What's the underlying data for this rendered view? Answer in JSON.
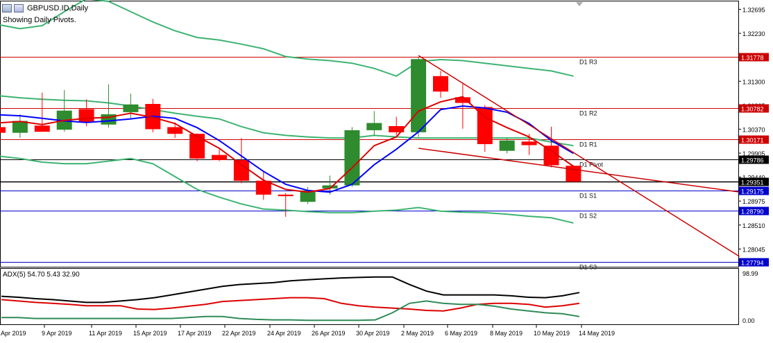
{
  "header": {
    "symbol": "GBPUSD.ID,Daily",
    "subtitle": "Showing Daily Pivots.",
    "indicator_label": "ADX(5) 54.70 5.43 32.90"
  },
  "icons": [
    "chart-window-icon",
    "indicator-icon"
  ],
  "colors": {
    "bull": "#2e8b2e",
    "bear": "#ff0000",
    "pivot_red": "#cc0000",
    "pivot_blue": "#0000cc",
    "ma_blue": "#0000ff",
    "ma_red": "#dd0000",
    "band": "#3cb371",
    "adx_main": "#000000",
    "adx_minus": "#dd0000",
    "adx_plus": "#2e8b57"
  },
  "price_axis": {
    "ticks": [
      "1.32695",
      "1.32230",
      "1.31300",
      "1.30835",
      "1.30370",
      "1.29905",
      "1.29440",
      "1.28975",
      "1.28510",
      "1.28045"
    ]
  },
  "pivot_lines": [
    {
      "name": "D1 R3",
      "price": "1.31778",
      "type": "resistance"
    },
    {
      "name": "D1 R2",
      "price": "1.30782",
      "type": "resistance"
    },
    {
      "name": "D1 R1",
      "price": "1.30171",
      "type": "resistance"
    },
    {
      "name": "D1 Pivot",
      "price": "1.29786",
      "type": "pivot"
    },
    {
      "name": "D1 S1",
      "price": "1.29175",
      "type": "support"
    },
    {
      "name": "D1 S2",
      "price": "1.28790",
      "type": "support"
    },
    {
      "name": "D1 S3",
      "price": "1.27794",
      "type": "support"
    }
  ],
  "current_price": "1.29351",
  "chart_data": {
    "type": "candlestick",
    "title": "GBPUSD.ID,Daily",
    "ylim": [
      1.277,
      1.3285
    ],
    "candles": [
      {
        "o": 1.3041,
        "h": 1.3065,
        "l": 1.3025,
        "c": 1.303
      },
      {
        "o": 1.303,
        "h": 1.3066,
        "l": 1.302,
        "c": 1.3053
      },
      {
        "o": 1.3044,
        "h": 1.3108,
        "l": 1.3034,
        "c": 1.3032
      },
      {
        "o": 1.3036,
        "h": 1.3113,
        "l": 1.3032,
        "c": 1.3073
      },
      {
        "o": 1.3076,
        "h": 1.3095,
        "l": 1.3043,
        "c": 1.305
      },
      {
        "o": 1.3046,
        "h": 1.3124,
        "l": 1.304,
        "c": 1.3066
      },
      {
        "o": 1.307,
        "h": 1.3106,
        "l": 1.3058,
        "c": 1.3085
      },
      {
        "o": 1.3086,
        "h": 1.3096,
        "l": 1.3031,
        "c": 1.3037
      },
      {
        "o": 1.3041,
        "h": 1.305,
        "l": 1.302,
        "c": 1.3028
      },
      {
        "o": 1.3028,
        "h": 1.3029,
        "l": 1.2975,
        "c": 1.298
      },
      {
        "o": 1.2987,
        "h": 1.2998,
        "l": 1.2975,
        "c": 1.2977
      },
      {
        "o": 1.2977,
        "h": 1.302,
        "l": 1.2932,
        "c": 1.2937
      },
      {
        "o": 1.2937,
        "h": 1.2955,
        "l": 1.29,
        "c": 1.291
      },
      {
        "o": 1.291,
        "h": 1.2913,
        "l": 1.2867,
        "c": 1.2907
      },
      {
        "o": 1.2896,
        "h": 1.2925,
        "l": 1.2892,
        "c": 1.2918
      },
      {
        "o": 1.2922,
        "h": 1.2947,
        "l": 1.291,
        "c": 1.2928
      },
      {
        "o": 1.2928,
        "h": 1.3041,
        "l": 1.2925,
        "c": 1.3035
      },
      {
        "o": 1.3035,
        "h": 1.3072,
        "l": 1.3024,
        "c": 1.3049
      },
      {
        "o": 1.3043,
        "h": 1.3061,
        "l": 1.3025,
        "c": 1.3031
      },
      {
        "o": 1.3031,
        "h": 1.3176,
        "l": 1.3022,
        "c": 1.3173
      },
      {
        "o": 1.314,
        "h": 1.315,
        "l": 1.3098,
        "c": 1.311
      },
      {
        "o": 1.3099,
        "h": 1.3125,
        "l": 1.3038,
        "c": 1.3088
      },
      {
        "o": 1.308,
        "h": 1.3084,
        "l": 1.2993,
        "c": 1.3008
      },
      {
        "o": 1.2995,
        "h": 1.302,
        "l": 1.299,
        "c": 1.3015
      },
      {
        "o": 1.3013,
        "h": 1.3028,
        "l": 1.2987,
        "c": 1.3006
      },
      {
        "o": 1.3005,
        "h": 1.3042,
        "l": 1.2963,
        "c": 1.2967
      },
      {
        "o": 1.2966,
        "h": 1.2967,
        "l": 1.2935,
        "c": 1.2935
      }
    ],
    "x_labels": [
      "5 Apr 2019",
      "9 Apr 2019",
      "11 Apr 2019",
      "15 Apr 2019",
      "17 Apr 2019",
      "22 Apr 2019",
      "24 Apr 2019",
      "26 Apr 2019",
      "30 Apr 2019",
      "2 May 2019",
      "6 May 2019",
      "8 May 2019",
      "10 May 2019",
      "14 May 2019"
    ],
    "ma_blue": [
      1.3065,
      1.3063,
      1.3058,
      1.3053,
      1.305,
      1.3053,
      1.3057,
      1.3062,
      1.3058,
      1.304,
      1.3015,
      1.2985,
      1.2955,
      1.293,
      1.2918,
      1.2915,
      1.293,
      1.2968,
      1.2998,
      1.3032,
      1.3075,
      1.3082,
      1.3078,
      1.307,
      1.3048,
      1.3015,
      1.299
    ],
    "ma_red": [
      1.3049,
      1.3052,
      1.3046,
      1.3054,
      1.3058,
      1.306,
      1.3068,
      1.306,
      1.3048,
      1.3023,
      1.3,
      1.2968,
      1.2938,
      1.292,
      1.2915,
      1.2922,
      1.2962,
      1.3005,
      1.3022,
      1.3072,
      1.309,
      1.31,
      1.306,
      1.304,
      1.3022,
      1.2995,
      1.2965
    ],
    "band_upper": [
      1.324,
      1.3232,
      1.3238,
      1.3265,
      1.329,
      1.3285,
      1.3265,
      1.3245,
      1.3228,
      1.3215,
      1.321,
      1.3202,
      1.3193,
      1.3178,
      1.3173,
      1.317,
      1.3165,
      1.3155,
      1.314,
      1.3168,
      1.3172,
      1.317,
      1.3165,
      1.316,
      1.3155,
      1.315,
      1.314
    ],
    "band_middle": [
      1.3102,
      1.3098,
      1.3095,
      1.3093,
      1.3092,
      1.3088,
      1.3082,
      1.3075,
      1.3068,
      1.3062,
      1.3057,
      1.3042,
      1.303,
      1.3025,
      1.3022,
      1.302,
      1.302,
      1.3025,
      1.3022,
      1.302,
      1.302,
      1.302,
      1.302,
      1.302,
      1.302,
      1.3012,
      1.3005
    ],
    "band_lower": [
      1.2985,
      1.298,
      1.2973,
      1.297,
      1.297,
      1.2975,
      1.298,
      1.297,
      1.2945,
      1.292,
      1.2905,
      1.2892,
      1.2882,
      1.288,
      1.2877,
      1.2875,
      1.2875,
      1.2878,
      1.288,
      1.2885,
      1.2878,
      1.2876,
      1.2875,
      1.2872,
      1.2868,
      1.2865,
      1.2855
    ],
    "trendlines": [
      {
        "from": {
          "i": 19,
          "p": 1.318
        },
        "to": {
          "i": 33.5,
          "p": 1.279
        }
      },
      {
        "from": {
          "i": 19,
          "p": 1.3
        },
        "to": {
          "i": 33.5,
          "p": 1.2915
        }
      }
    ],
    "adx_panel": {
      "ticks": [
        "98.99",
        "0.00"
      ],
      "ylim": [
        0,
        100
      ],
      "adx": [
        55,
        53,
        50,
        48,
        45,
        42,
        42,
        45,
        48,
        52,
        58,
        64,
        70,
        76,
        80,
        82,
        84,
        88,
        90,
        92,
        94,
        95,
        96,
        96,
        80,
        66,
        58,
        58,
        58,
        58,
        56,
        53,
        52,
        56,
        63
      ],
      "di_minus": [
        48,
        45,
        42,
        40,
        38,
        35,
        35,
        35,
        28,
        27,
        30,
        34,
        38,
        44,
        46,
        48,
        50,
        52,
        52,
        50,
        40,
        35,
        32,
        30,
        28,
        25,
        24,
        30,
        38,
        40,
        40,
        38,
        32,
        35,
        40
      ],
      "di_plus": [
        10,
        10,
        8,
        8,
        8,
        8,
        8,
        8,
        8,
        8,
        8,
        10,
        12,
        12,
        8,
        6,
        5,
        5,
        4,
        4,
        4,
        4,
        5,
        20,
        40,
        45,
        40,
        38,
        38,
        34,
        28,
        24,
        20,
        18,
        12
      ]
    }
  }
}
